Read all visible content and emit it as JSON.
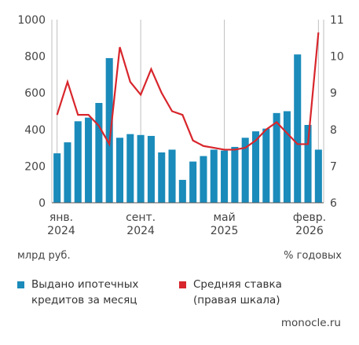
{
  "chart_data": {
    "type": "bar+line",
    "x_labels": [
      {
        "index": 0,
        "line1": "янв.",
        "line2": "2024"
      },
      {
        "index": 8,
        "line1": "сент.",
        "line2": "2024"
      },
      {
        "index": 16,
        "line1": "май",
        "line2": "2025"
      },
      {
        "index": 25,
        "line1": "февр.",
        "line2": "2026"
      }
    ],
    "left_axis": {
      "ticks": [
        0,
        200,
        400,
        600,
        800,
        1000
      ],
      "range": [
        0,
        1000
      ],
      "unit": "млрд руб."
    },
    "right_axis": {
      "ticks": [
        6,
        7,
        8,
        9,
        10,
        11
      ],
      "range": [
        6,
        11
      ],
      "unit": "% годовых"
    },
    "series": [
      {
        "name": "Выдано ипотечных кредитов за месяц",
        "type": "bar",
        "axis": "left",
        "color": "#1a8bba",
        "values": [
          270,
          330,
          445,
          465,
          545,
          790,
          355,
          375,
          370,
          365,
          275,
          290,
          125,
          225,
          255,
          290,
          285,
          305,
          355,
          390,
          405,
          490,
          500,
          810,
          425,
          290
        ]
      },
      {
        "name": "Средняя ставка (правая шкала)",
        "type": "line",
        "axis": "right",
        "color": "#d8262c",
        "values": [
          8.4,
          9.3,
          8.4,
          8.4,
          8.1,
          7.6,
          10.25,
          9.3,
          8.95,
          9.65,
          9.0,
          8.5,
          8.4,
          7.7,
          7.55,
          7.5,
          7.45,
          7.45,
          7.5,
          7.7,
          8.0,
          8.2,
          7.9,
          7.6,
          7.6,
          10.65
        ]
      }
    ],
    "grid": "vertical",
    "legend_position": "bottom"
  },
  "legend": {
    "bars_line1": "Выдано ипотечных",
    "bars_line2": "кредитов за месяц",
    "line_line1": "Средняя ставка",
    "line_line2": "(правая шкала)"
  },
  "source": "monocle.ru"
}
